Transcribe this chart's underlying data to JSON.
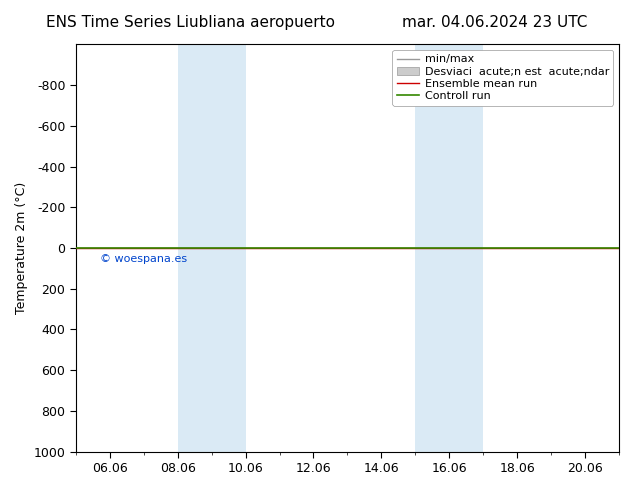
{
  "title_left": "ENS Time Series Liubliana aeropuerto",
  "title_right": "mar. 04.06.2024 23 UTC",
  "ylabel": "Temperature 2m (°C)",
  "ylim_bottom": 1000,
  "ylim_top": -1000,
  "yticks": [
    -800,
    -600,
    -400,
    -200,
    0,
    200,
    400,
    600,
    800,
    1000
  ],
  "xlim_left": 5.5,
  "xlim_right": 21.0,
  "xtick_positions": [
    6,
    8,
    10,
    12,
    14,
    16,
    18,
    20
  ],
  "xtick_labels": [
    "06.06",
    "08.06",
    "10.06",
    "12.06",
    "14.06",
    "16.06",
    "18.06",
    "20.06"
  ],
  "minor_xtick_positions": [
    5,
    6,
    7,
    8,
    9,
    10,
    11,
    12,
    13,
    14,
    15,
    16,
    17,
    18,
    19,
    20,
    21
  ],
  "blue_bands": [
    {
      "start": 8.0,
      "end": 10.0
    },
    {
      "start": 15.0,
      "end": 17.0
    }
  ],
  "band_color": "#daeaf5",
  "control_run_y": 0,
  "ensemble_mean_y": 0,
  "minmax_y": 0,
  "watermark": "© woespana.es",
  "watermark_color": "#0044cc",
  "legend_items": [
    "min/max",
    "Desviaci  acute;n est  acute;ndar",
    "Ensemble mean run",
    "Controll run"
  ],
  "legend_colors_line": [
    "#999999",
    "#cccccc",
    "#cc0000",
    "#338800"
  ],
  "bg_color": "#ffffff",
  "title_fontsize": 11,
  "axis_label_fontsize": 9,
  "tick_fontsize": 9,
  "legend_fontsize": 8
}
